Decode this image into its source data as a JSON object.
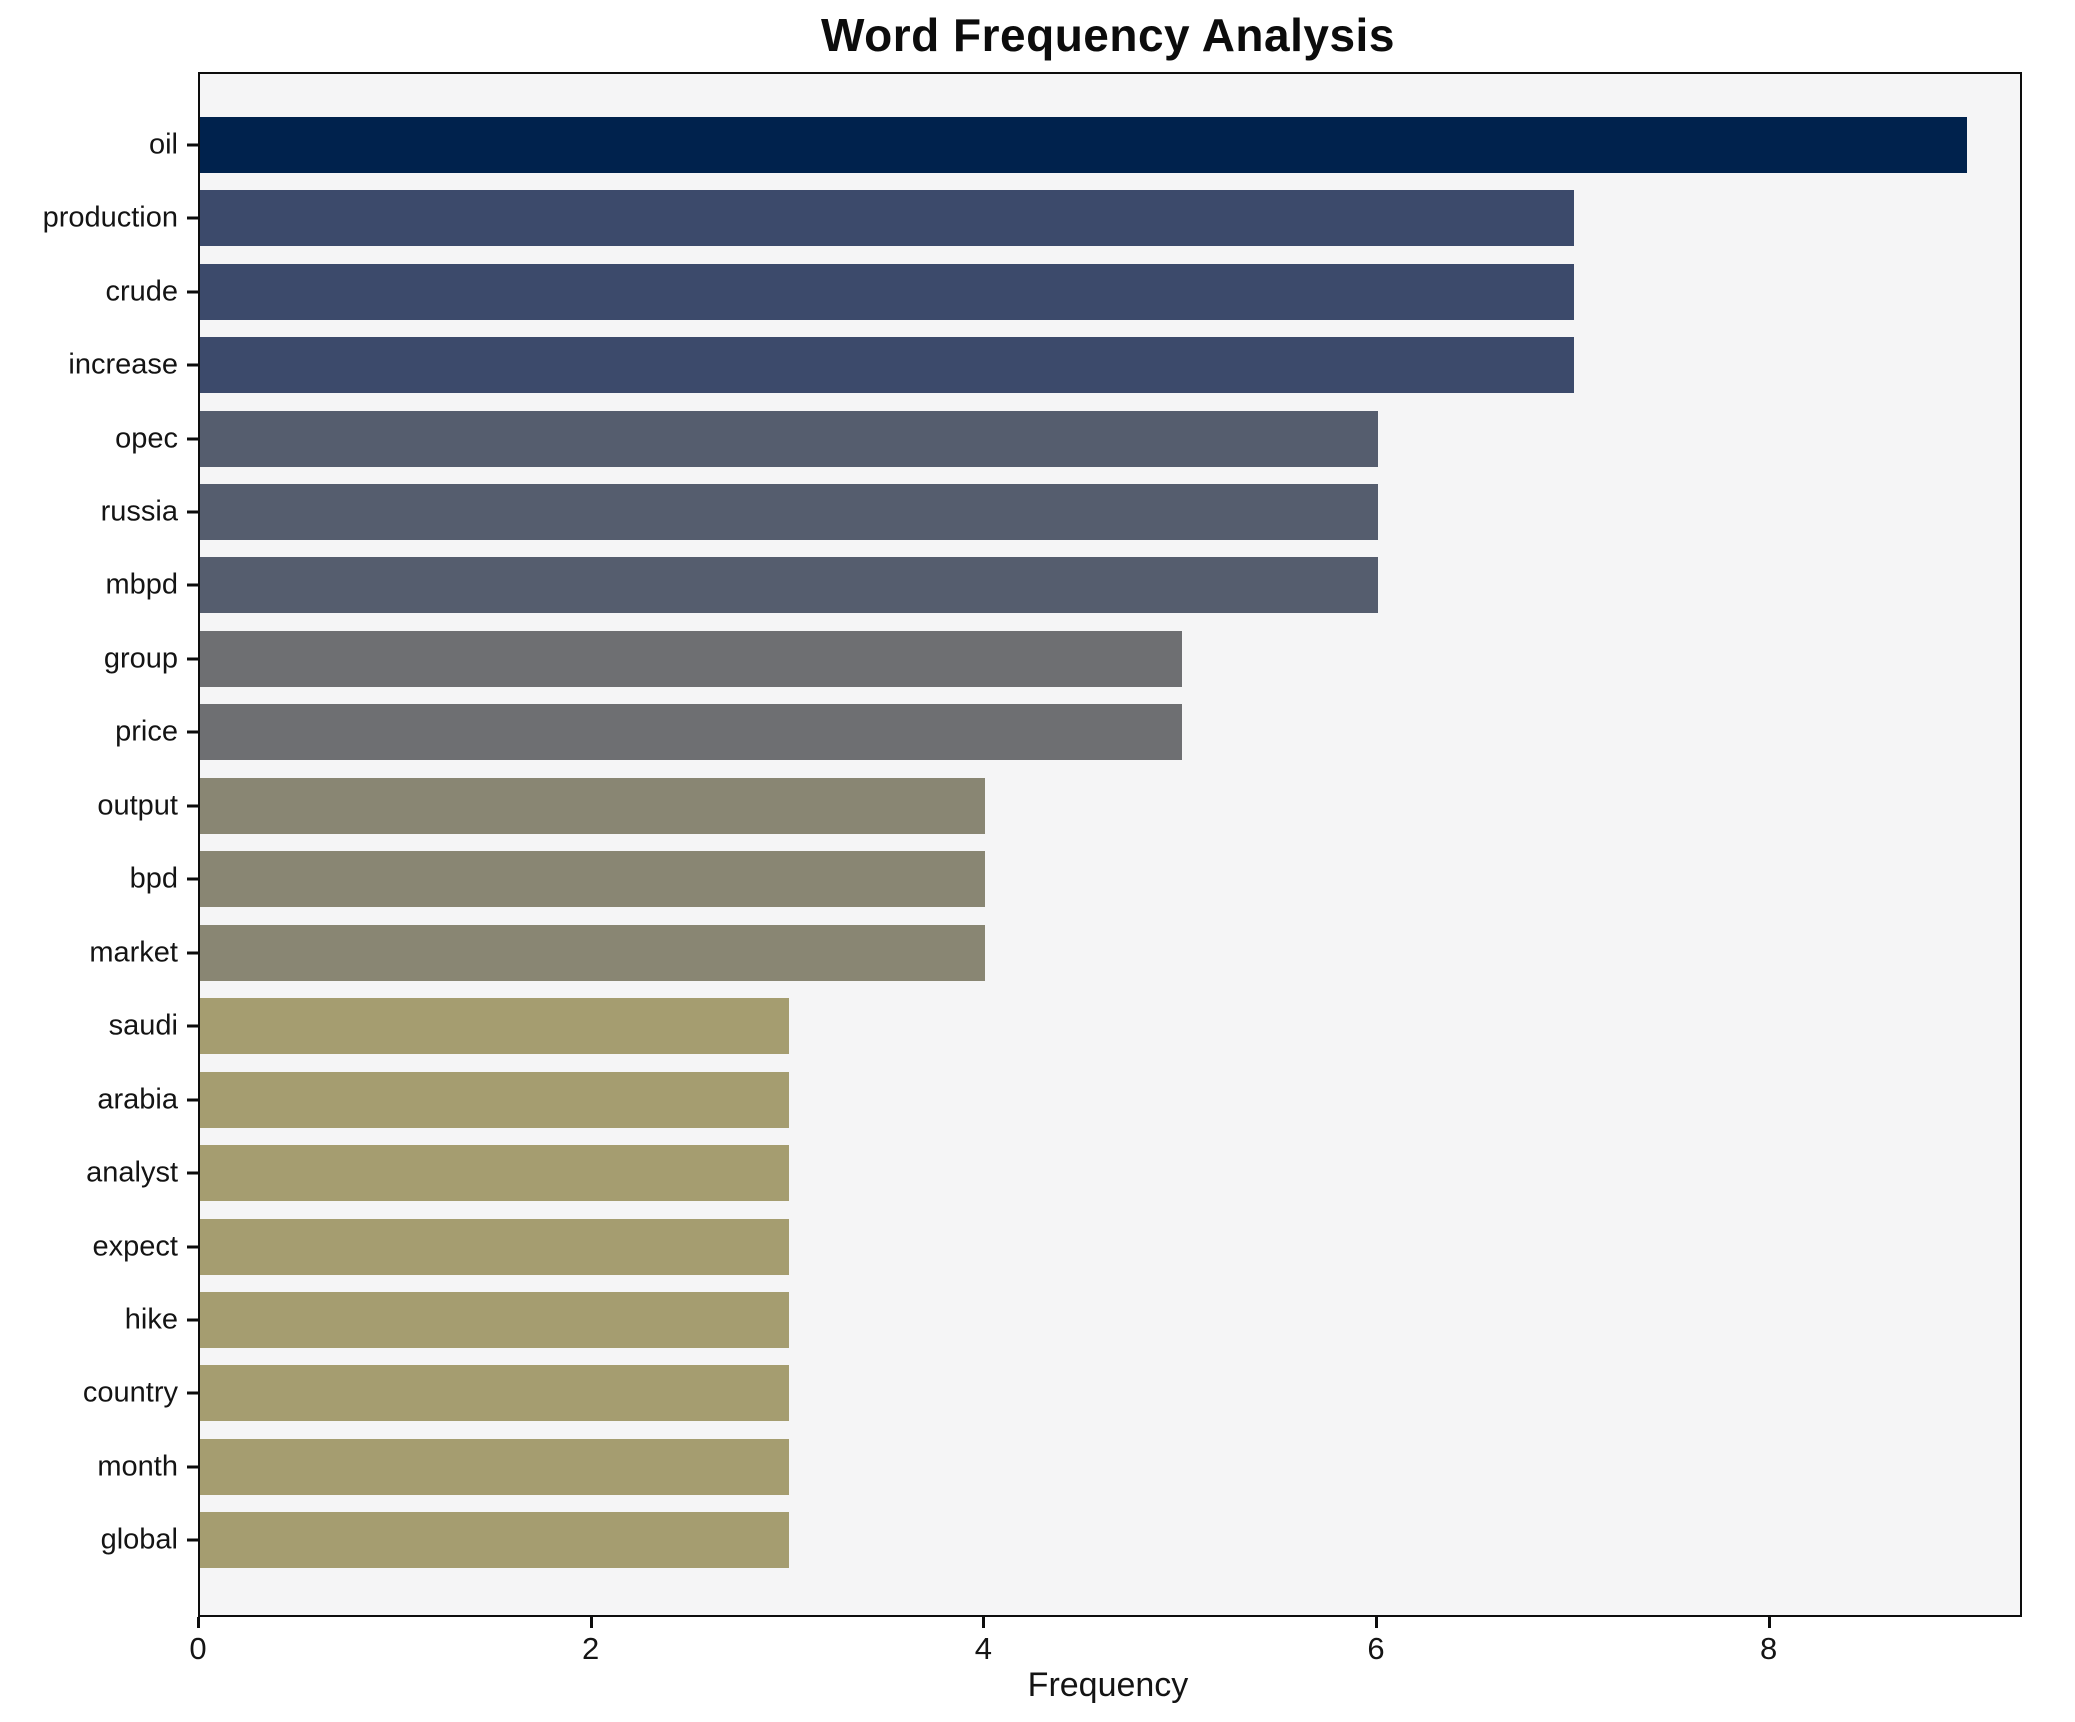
{
  "chart_data": {
    "type": "bar",
    "orientation": "horizontal",
    "title": "Word Frequency Analysis",
    "xlabel": "Frequency",
    "ylabel": "",
    "categories": [
      "oil",
      "production",
      "crude",
      "increase",
      "opec",
      "russia",
      "mbpd",
      "group",
      "price",
      "output",
      "bpd",
      "market",
      "saudi",
      "arabia",
      "analyst",
      "expect",
      "hike",
      "country",
      "month",
      "global"
    ],
    "values": [
      9,
      7,
      7,
      7,
      6,
      6,
      6,
      5,
      5,
      4,
      4,
      4,
      3,
      3,
      3,
      3,
      3,
      3,
      3,
      3
    ],
    "bar_colors": [
      "#00224d",
      "#3c4a6b",
      "#3c4a6b",
      "#3c4a6b",
      "#555d6e",
      "#555d6e",
      "#555d6e",
      "#6e6f72",
      "#6e6f72",
      "#898673",
      "#898673",
      "#898673",
      "#a59d70",
      "#a59d70",
      "#a59d70",
      "#a59d70",
      "#a59d70",
      "#a59d70",
      "#a59d70",
      "#a59d70"
    ],
    "x_ticks": [
      0,
      2,
      4,
      6,
      8
    ],
    "xlim": [
      0,
      9.27
    ],
    "grid": false,
    "legend": false,
    "plot_background": "#f5f5f6",
    "figure_background": "#ffffff",
    "spine_color": "#0d0d0d"
  }
}
